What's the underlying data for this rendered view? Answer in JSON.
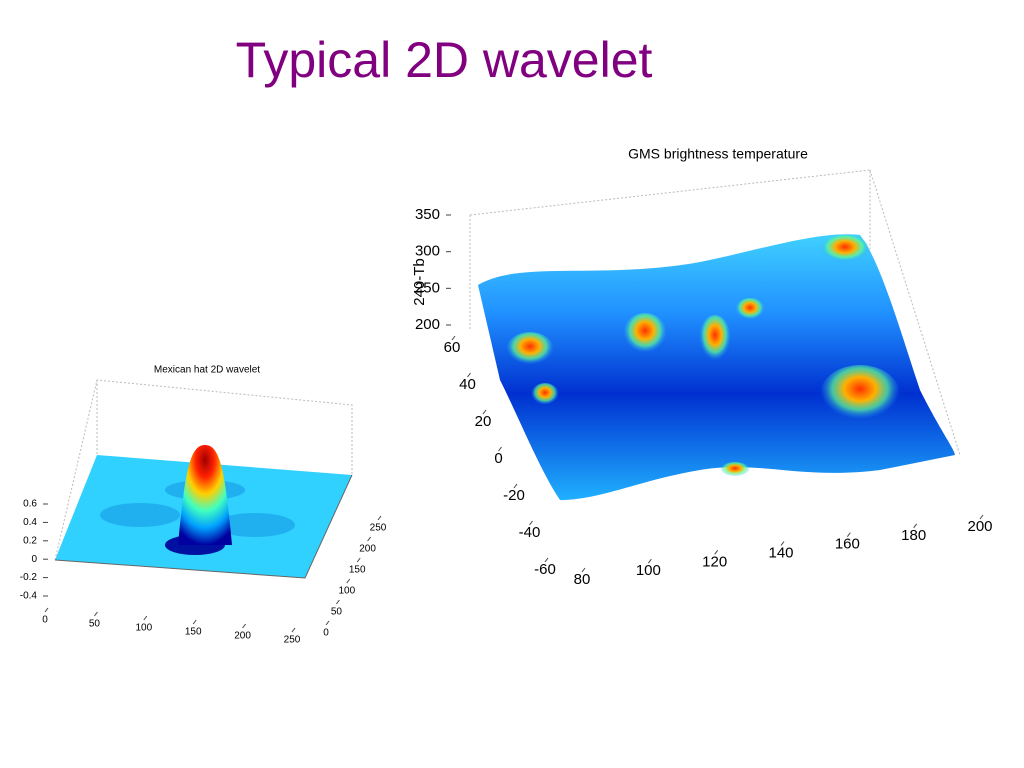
{
  "title": "Typical 2D wavelet",
  "chart_data": [
    {
      "type": "surface",
      "title": "Mexican hat 2D wavelet",
      "xlim": [
        0,
        250
      ],
      "xticks": [
        0,
        50,
        100,
        150,
        200,
        250
      ],
      "ylim": [
        0,
        250
      ],
      "yticks": [
        0,
        50,
        100,
        150,
        200,
        250
      ],
      "zlim": [
        -0.4,
        0.6
      ],
      "zticks": [
        -0.4,
        -0.2,
        0,
        0.2,
        0.4,
        0.6
      ]
    },
    {
      "type": "surface",
      "title": "GMS brightness temperature",
      "zlabel": "240-Tb",
      "xlim": [
        80,
        200
      ],
      "xticks": [
        80,
        100,
        120,
        140,
        160,
        180,
        200
      ],
      "ylim": [
        -60,
        60
      ],
      "yticks": [
        -60,
        -40,
        -20,
        0,
        20,
        40,
        60
      ],
      "zlim": [
        200,
        350
      ],
      "zticks": [
        200,
        250,
        300,
        350
      ]
    }
  ]
}
